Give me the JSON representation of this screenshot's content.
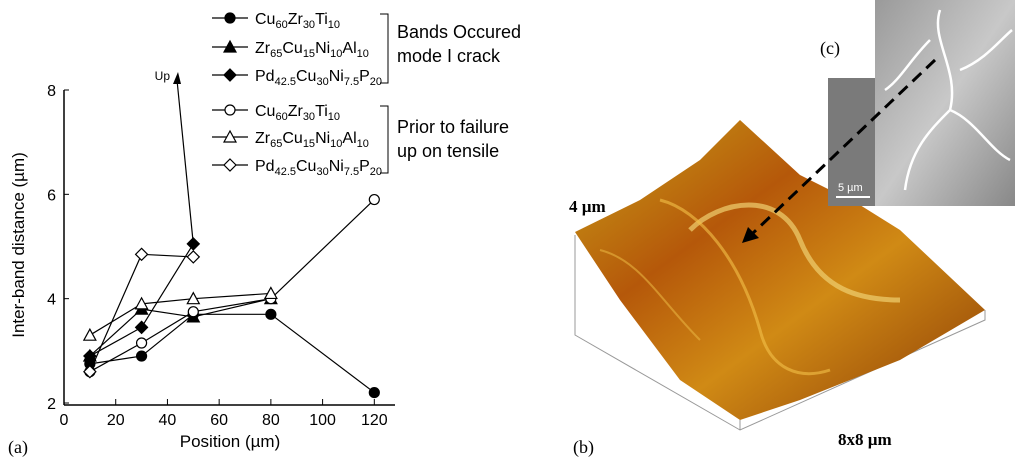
{
  "chart_data": {
    "type": "line",
    "panel_label": "(a)",
    "x_label": "Position (µm)",
    "y_label": "Inter-band distance (µm)",
    "x": [
      10,
      30,
      50,
      80,
      120
    ],
    "xlim": [
      0,
      128
    ],
    "xticks": [
      0,
      20,
      40,
      60,
      80,
      100,
      120
    ],
    "ylim": [
      2,
      8
    ],
    "yticks": [
      2,
      4,
      6,
      8
    ],
    "series": [
      {
        "name": [
          "Cu",
          "60",
          "Zr",
          "30",
          "Ti",
          "10"
        ],
        "color": "#000",
        "marker": "circle",
        "filled": true,
        "values": [
          2.75,
          2.9,
          3.7,
          3.7,
          2.2
        ]
      },
      {
        "name": [
          "Zr",
          "65",
          "Cu",
          "15",
          "Ni",
          "10",
          "Al",
          "10"
        ],
        "color": "#000",
        "marker": "triangle",
        "filled": true,
        "values": [
          2.9,
          3.8,
          3.65,
          4.0,
          null
        ]
      },
      {
        "name": [
          "Pd",
          "42.5",
          "Cu",
          "30",
          "Ni",
          "7.5",
          "P",
          "20"
        ],
        "color": "#000",
        "marker": "diamond",
        "filled": true,
        "values": [
          2.9,
          3.45,
          5.05,
          null,
          null
        ]
      },
      {
        "name": [
          "Cu",
          "60",
          "Zr",
          "30",
          "Ti",
          "10"
        ],
        "color": "#000",
        "marker": "circle",
        "filled": false,
        "values": [
          2.6,
          3.15,
          3.75,
          4.0,
          5.9
        ]
      },
      {
        "name": [
          "Zr",
          "65",
          "Cu",
          "15",
          "Ni",
          "10",
          "Al",
          "10"
        ],
        "color": "#000",
        "marker": "triangle",
        "filled": false,
        "values": [
          3.3,
          3.9,
          4.0,
          4.1,
          null
        ]
      },
      {
        "name": [
          "Pd",
          "42.5",
          "Cu",
          "30",
          "Ni",
          "7.5",
          "P",
          "20"
        ],
        "color": "#000",
        "marker": "diamond",
        "filled": false,
        "values": [
          2.6,
          4.85,
          4.8,
          null,
          null
        ]
      }
    ],
    "groups": [
      [
        "Bands Occured",
        "mode I crack"
      ],
      [
        "Prior to failure",
        "up on tensile"
      ]
    ],
    "annotation": "Up"
  },
  "image_panels": {
    "b_label": "(b)",
    "height_label": "4 µm",
    "size_label": "8x8 µm",
    "c_label": "(c)",
    "scale_label": "5 µm"
  }
}
